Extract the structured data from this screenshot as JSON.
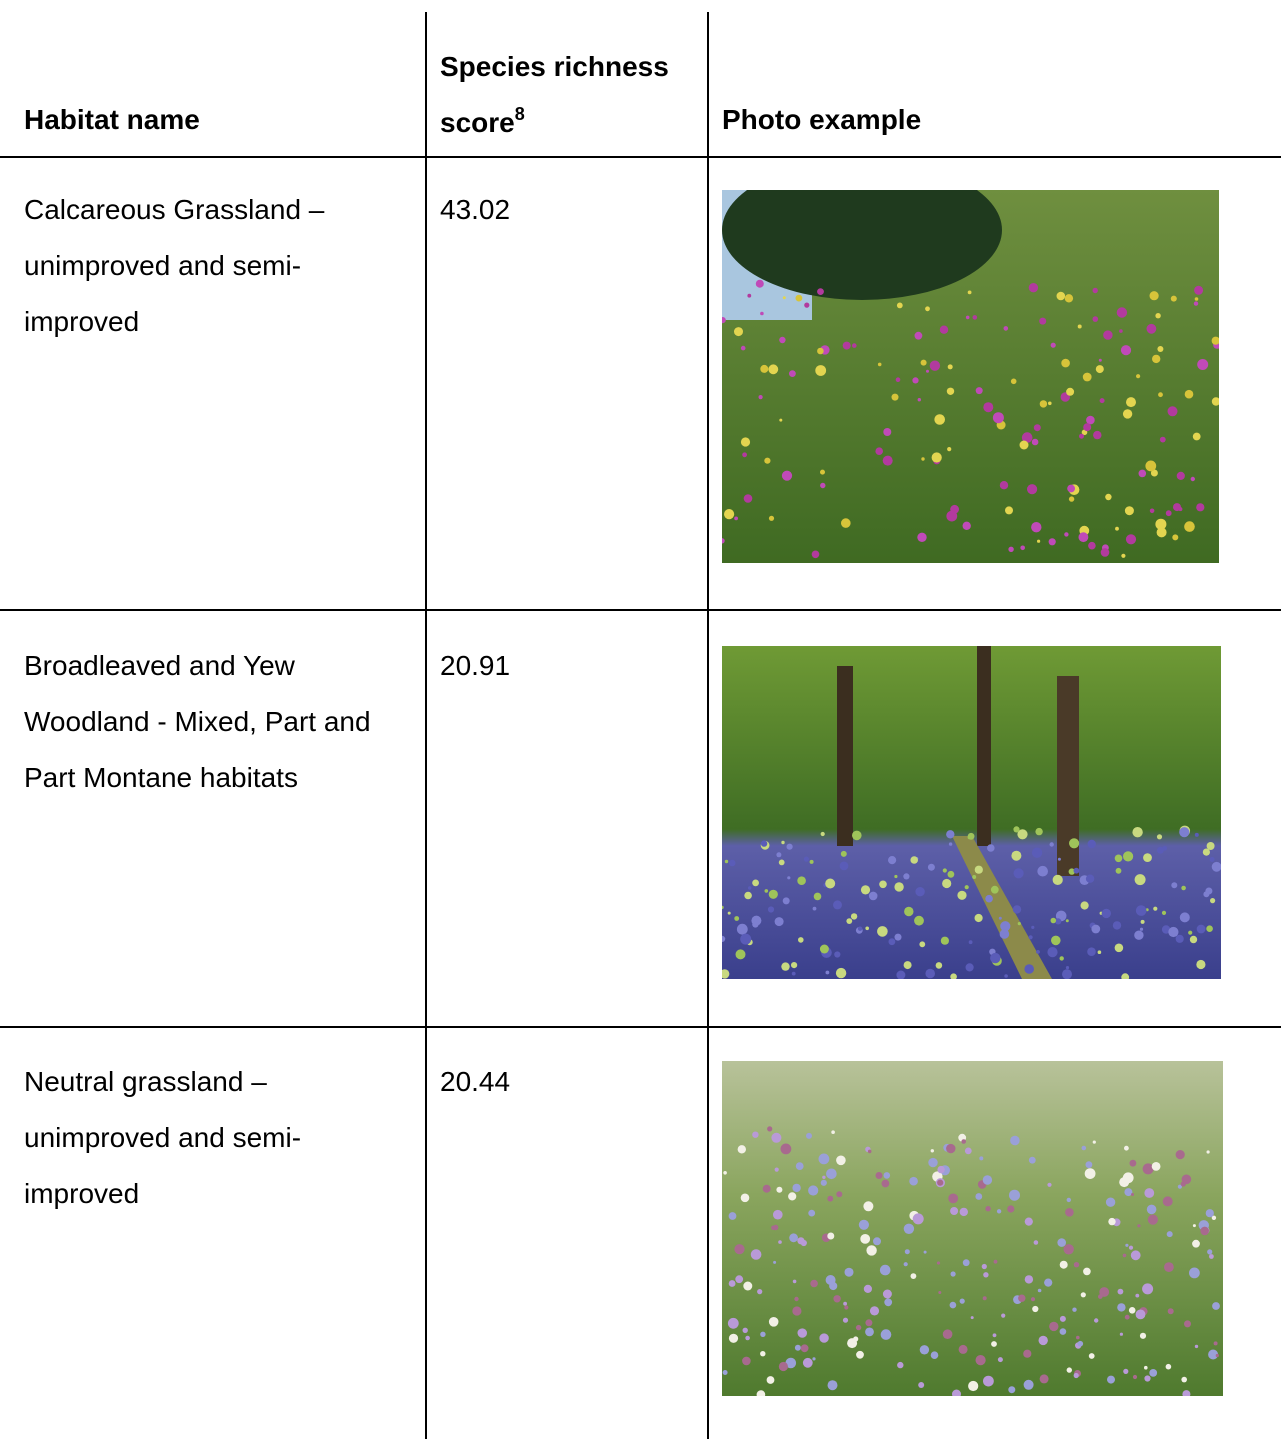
{
  "table": {
    "headers": [
      "Habitat name",
      "Species richness score",
      "Photo example"
    ],
    "header_footnote": "8",
    "rows": [
      [
        "Calcareous Grassland – unimproved and semi-improved",
        "43.02"
      ],
      [
        "Broadleaved and Yew Woodland - Mixed, Part and Part Montane habitats",
        "20.91"
      ],
      [
        "Neutral grassland – unimproved and semi-improved",
        "20.44"
      ]
    ]
  }
}
